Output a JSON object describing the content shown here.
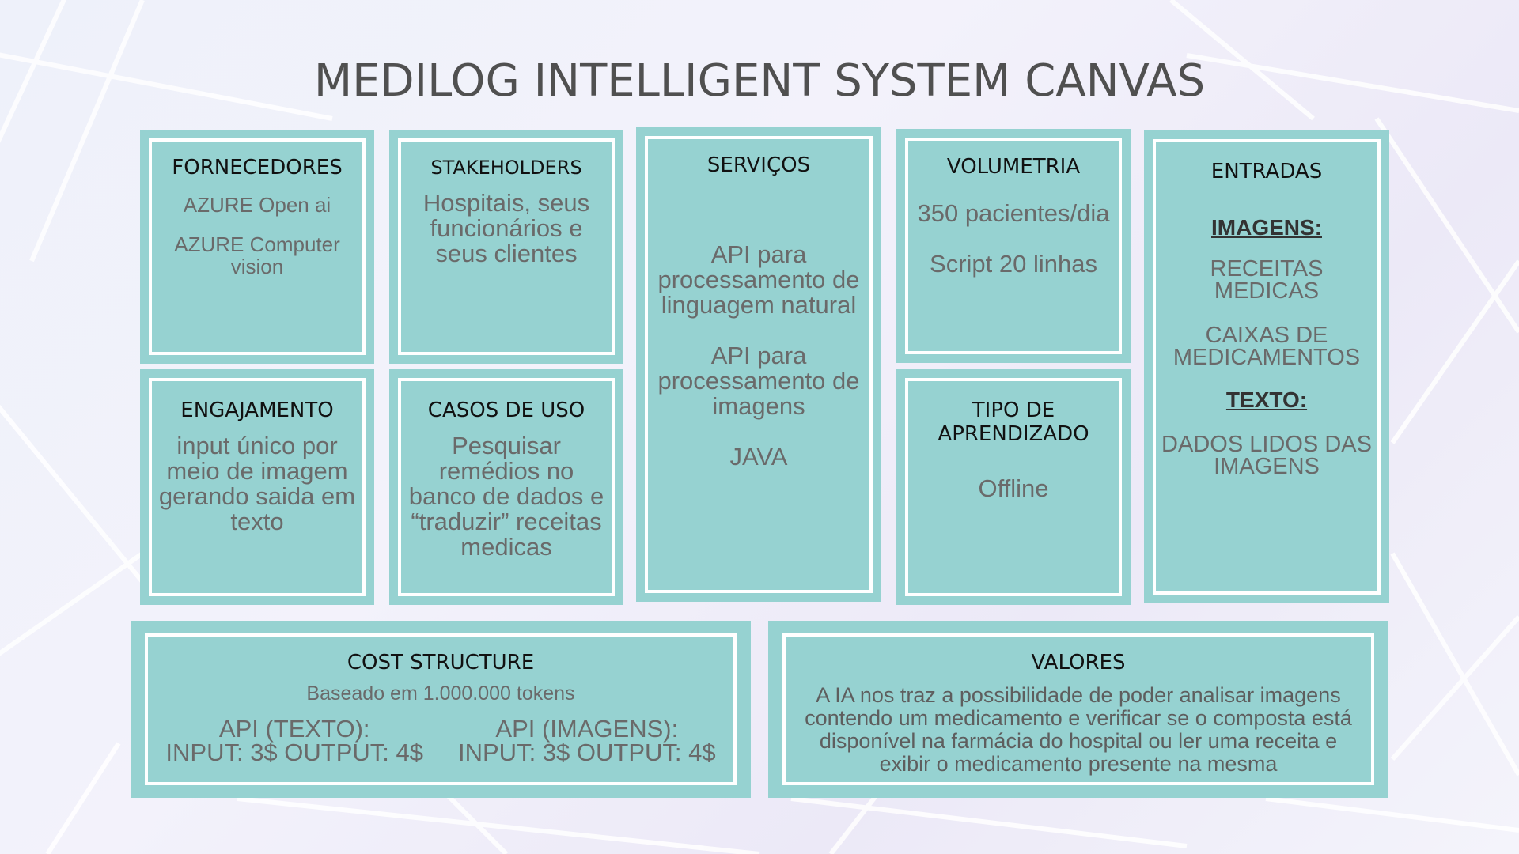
{
  "title": "MEDILOG INTELLIGENT SYSTEM CANVAS",
  "colors": {
    "box_fill": "#96d2d1",
    "box_border": "#ffffff",
    "body_text": "#6a6a6a",
    "heading_text": "#111111",
    "title_text": "#505050"
  },
  "fornecedores": {
    "heading": "FORNECEDORES",
    "items": [
      "AZURE Open ai",
      "AZURE Computer vision"
    ]
  },
  "stakeholders": {
    "heading": "STAKEHOLDERS",
    "text": "Hospitais, seus funcionários e seus clientes"
  },
  "servicos": {
    "heading": "SERVIÇOS",
    "items": [
      "API para processamento de linguagem natural",
      "API para processamento de imagens",
      "JAVA"
    ]
  },
  "volumetria": {
    "heading": "VOLUMETRIA",
    "items": [
      "350 pacientes/dia",
      "Script 20 linhas"
    ]
  },
  "entradas": {
    "heading": "ENTRADAS",
    "imagens_label": "IMAGENS:",
    "imagens_items": [
      "RECEITAS MEDICAS",
      "CAIXAS DE MEDICAMENTOS"
    ],
    "texto_label": "TEXTO:",
    "texto_items": [
      "DADOS LIDOS DAS IMAGENS"
    ]
  },
  "engajamento": {
    "heading": "ENGAJAMENTO",
    "text": "input único por meio de imagem gerando saida em texto"
  },
  "casos_de_uso": {
    "heading": "CASOS DE USO",
    "text": "Pesquisar remédios no banco de dados e “traduzir” receitas medicas"
  },
  "tipo_aprendizado": {
    "heading": "TIPO DE APRENDIZADO",
    "text": "Offline"
  },
  "cost_structure": {
    "heading": "COST STRUCTURE",
    "subtitle": "Baseado em 1.000.000 tokens",
    "texto_label": "API (TEXTO):",
    "texto_prices": "INPUT: 3$ OUTPUT: 4$",
    "imagens_label": "API (IMAGENS):",
    "imagens_prices": "INPUT: 3$ OUTPUT: 4$"
  },
  "valores": {
    "heading": "VALORES",
    "text": "A IA nos traz a possibilidade de poder analisar imagens contendo um medicamento e verificar se o composta está disponível na farmácia do hospital ou ler uma receita e exibir o medicamento presente na mesma"
  }
}
